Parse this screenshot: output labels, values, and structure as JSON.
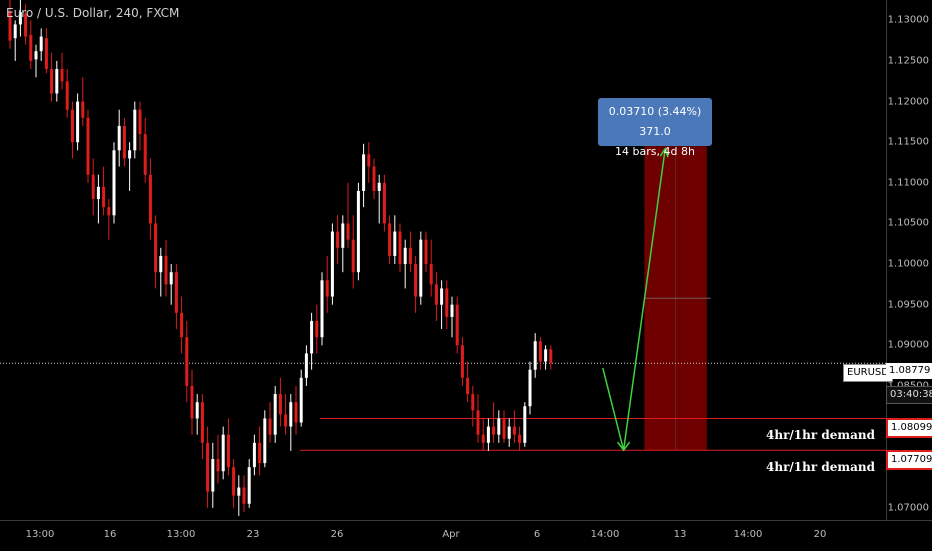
{
  "legend": {
    "symbol_title": "Euro / U.S. Dollar, 240, FXCM"
  },
  "symbol_tag": "EURUSD",
  "current_price_tag": "1.08779",
  "countdown_tag": "03:40:38",
  "colors": {
    "up": "#ffffff",
    "down": "#e01d1d",
    "zone": "#7a0000",
    "arrow": "#3fd13f",
    "level_line": "#e01d1d",
    "measure_box": "#4a78b8"
  },
  "measure": {
    "line1": "0.03710 (3.44%) 371.0",
    "line2": "14 bars, 4d 8h"
  },
  "levels": [
    {
      "price": 1.08099,
      "tag": "1.08099",
      "label": "4hr/1hr demand"
    },
    {
      "price": 1.07709,
      "tag": "1.07709",
      "label": "4hr/1hr demand"
    }
  ],
  "chart_data": {
    "type": "candlestick",
    "title": "Euro / U.S. Dollar, 240, FXCM",
    "ylim": [
      1.0685,
      1.1325
    ],
    "y_ticks": [
      "1.13000",
      "1.12500",
      "1.12000",
      "1.11500",
      "1.11000",
      "1.10500",
      "1.10000",
      "1.09500",
      "1.09000",
      "1.08500",
      "1.08000",
      "1.07500",
      "1.07000"
    ],
    "x_ticks": [
      "13:00",
      "16",
      "13:00",
      "23",
      "26",
      "Apr",
      "6",
      "14:00",
      "13",
      "14:00",
      "20"
    ],
    "current_price": 1.08779,
    "zone": {
      "bar_from": 122,
      "bar_to": 134,
      "price_top": 1.1145,
      "price_bottom": 1.0771
    },
    "arrow": {
      "points": [
        [
          114,
          1.0872
        ],
        [
          118,
          1.0771
        ],
        [
          126,
          1.1142
        ]
      ]
    },
    "candles": [
      [
        1.131,
        1.1325,
        1.1265,
        1.1275
      ],
      [
        1.1278,
        1.13,
        1.125,
        1.1295
      ],
      [
        1.1295,
        1.1325,
        1.128,
        1.131
      ],
      [
        1.1308,
        1.132,
        1.127,
        1.128
      ],
      [
        1.1282,
        1.13,
        1.124,
        1.125
      ],
      [
        1.1252,
        1.127,
        1.123,
        1.1262
      ],
      [
        1.1262,
        1.129,
        1.125,
        1.128
      ],
      [
        1.1278,
        1.129,
        1.1235,
        1.124
      ],
      [
        1.124,
        1.126,
        1.12,
        1.121
      ],
      [
        1.121,
        1.125,
        1.12,
        1.124
      ],
      [
        1.124,
        1.126,
        1.1215,
        1.1225
      ],
      [
        1.1225,
        1.124,
        1.118,
        1.119
      ],
      [
        1.119,
        1.12,
        1.113,
        1.115
      ],
      [
        1.115,
        1.121,
        1.114,
        1.12
      ],
      [
        1.12,
        1.123,
        1.117,
        1.118
      ],
      [
        1.118,
        1.119,
        1.11,
        1.111
      ],
      [
        1.111,
        1.113,
        1.106,
        1.108
      ],
      [
        1.108,
        1.111,
        1.105,
        1.1095
      ],
      [
        1.1095,
        1.112,
        1.106,
        1.107
      ],
      [
        1.107,
        1.108,
        1.103,
        1.106
      ],
      [
        1.106,
        1.115,
        1.105,
        1.114
      ],
      [
        1.114,
        1.119,
        1.112,
        1.117
      ],
      [
        1.117,
        1.118,
        1.112,
        1.113
      ],
      [
        1.113,
        1.115,
        1.109,
        1.114
      ],
      [
        1.114,
        1.12,
        1.113,
        1.119
      ],
      [
        1.119,
        1.12,
        1.114,
        1.116
      ],
      [
        1.116,
        1.118,
        1.11,
        1.111
      ],
      [
        1.111,
        1.113,
        1.103,
        1.105
      ],
      [
        1.105,
        1.106,
        1.097,
        1.099
      ],
      [
        1.099,
        1.102,
        1.096,
        1.101
      ],
      [
        1.101,
        1.103,
        1.096,
        1.0975
      ],
      [
        1.0975,
        1.1,
        1.095,
        1.099
      ],
      [
        1.099,
        1.1,
        1.092,
        1.094
      ],
      [
        1.094,
        1.096,
        1.089,
        1.091
      ],
      [
        1.091,
        1.093,
        1.083,
        1.085
      ],
      [
        1.085,
        1.087,
        1.079,
        1.081
      ],
      [
        1.081,
        1.084,
        1.079,
        1.083
      ],
      [
        1.083,
        1.084,
        1.076,
        1.078
      ],
      [
        1.078,
        1.08,
        1.07,
        1.072
      ],
      [
        1.072,
        1.078,
        1.07,
        1.076
      ],
      [
        1.076,
        1.079,
        1.073,
        1.0745
      ],
      [
        1.0745,
        1.08,
        1.0735,
        1.079
      ],
      [
        1.079,
        1.081,
        1.074,
        1.075
      ],
      [
        1.075,
        1.076,
        1.07,
        1.0715
      ],
      [
        1.0715,
        1.074,
        1.069,
        1.0725
      ],
      [
        1.0725,
        1.074,
        1.0695,
        1.0705
      ],
      [
        1.0705,
        1.076,
        1.07,
        1.075
      ],
      [
        1.075,
        1.079,
        1.074,
        1.078
      ],
      [
        1.078,
        1.08,
        1.074,
        1.0755
      ],
      [
        1.0755,
        1.082,
        1.075,
        1.081
      ],
      [
        1.081,
        1.083,
        1.078,
        1.079
      ],
      [
        1.079,
        1.085,
        1.078,
        1.084
      ],
      [
        1.084,
        1.086,
        1.08,
        1.0815
      ],
      [
        1.0815,
        1.084,
        1.079,
        1.08
      ],
      [
        1.08,
        1.084,
        1.077,
        1.083
      ],
      [
        1.083,
        1.085,
        1.079,
        1.0805
      ],
      [
        1.0805,
        1.087,
        1.08,
        1.086
      ],
      [
        1.086,
        1.09,
        1.085,
        1.089
      ],
      [
        1.089,
        1.094,
        1.087,
        1.093
      ],
      [
        1.093,
        1.095,
        1.089,
        1.091
      ],
      [
        1.091,
        1.099,
        1.09,
        1.098
      ],
      [
        1.098,
        1.101,
        1.094,
        1.096
      ],
      [
        1.096,
        1.105,
        1.095,
        1.104
      ],
      [
        1.104,
        1.106,
        1.1,
        1.102
      ],
      [
        1.102,
        1.106,
        1.099,
        1.105
      ],
      [
        1.105,
        1.11,
        1.102,
        1.103
      ],
      [
        1.103,
        1.106,
        1.097,
        1.099
      ],
      [
        1.099,
        1.11,
        1.098,
        1.109
      ],
      [
        1.109,
        1.1148,
        1.107,
        1.1135
      ],
      [
        1.1135,
        1.115,
        1.11,
        1.112
      ],
      [
        1.112,
        1.113,
        1.108,
        1.109
      ],
      [
        1.109,
        1.111,
        1.105,
        1.11
      ],
      [
        1.11,
        1.111,
        1.104,
        1.105
      ],
      [
        1.105,
        1.106,
        1.1,
        1.101
      ],
      [
        1.101,
        1.106,
        1.1,
        1.104
      ],
      [
        1.104,
        1.105,
        1.099,
        1.1
      ],
      [
        1.1,
        1.103,
        1.097,
        1.102
      ],
      [
        1.102,
        1.104,
        1.099,
        1.1
      ],
      [
        1.1,
        1.101,
        1.094,
        1.096
      ],
      [
        1.096,
        1.104,
        1.095,
        1.103
      ],
      [
        1.103,
        1.104,
        1.099,
        1.1
      ],
      [
        1.1,
        1.103,
        1.096,
        1.0975
      ],
      [
        1.0975,
        1.099,
        1.093,
        1.095
      ],
      [
        1.095,
        1.098,
        1.092,
        1.097
      ],
      [
        1.097,
        1.098,
        1.092,
        1.0935
      ],
      [
        1.0935,
        1.096,
        1.091,
        1.095
      ],
      [
        1.095,
        1.096,
        1.089,
        1.09
      ],
      [
        1.09,
        1.091,
        1.085,
        1.086
      ],
      [
        1.086,
        1.088,
        1.083,
        1.084
      ],
      [
        1.084,
        1.085,
        1.08,
        1.082
      ],
      [
        1.082,
        1.084,
        1.078,
        1.079
      ],
      [
        1.079,
        1.081,
        1.077,
        1.078
      ],
      [
        1.078,
        1.081,
        1.077,
        1.08
      ],
      [
        1.08,
        1.083,
        1.078,
        1.079
      ],
      [
        1.079,
        1.082,
        1.078,
        1.081
      ],
      [
        1.081,
        1.082,
        1.078,
        1.0785
      ],
      [
        1.0785,
        1.081,
        1.0775,
        1.08
      ],
      [
        1.08,
        1.082,
        1.078,
        1.079
      ],
      [
        1.079,
        1.08,
        1.077,
        1.078
      ],
      [
        1.078,
        1.083,
        1.0775,
        1.0825
      ],
      [
        1.0825,
        1.088,
        1.0815,
        1.087
      ],
      [
        1.087,
        1.0915,
        1.086,
        1.0905
      ],
      [
        1.0905,
        1.091,
        1.087,
        1.088
      ],
      [
        1.088,
        1.09,
        1.087,
        1.0895
      ],
      [
        1.0895,
        1.09,
        1.087,
        1.0878
      ]
    ]
  }
}
